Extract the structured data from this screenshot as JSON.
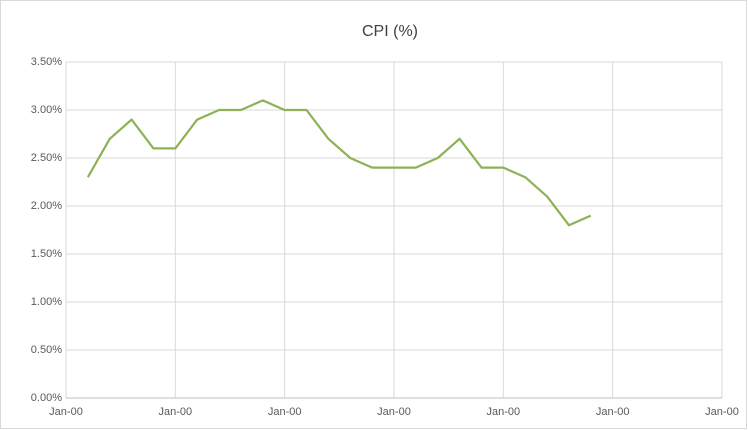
{
  "chart_data": {
    "type": "line",
    "title": "CPI (%)",
    "x": [
      1,
      2,
      3,
      4,
      5,
      6,
      7,
      8,
      9,
      10,
      11,
      12,
      13,
      14,
      15,
      16,
      17,
      18,
      19,
      20,
      21,
      22,
      23,
      24
    ],
    "values": [
      2.3,
      2.7,
      2.9,
      2.6,
      2.6,
      2.9,
      3.0,
      3.0,
      3.1,
      3.0,
      3.0,
      2.7,
      2.5,
      2.4,
      2.4,
      2.4,
      2.5,
      2.7,
      2.4,
      2.4,
      2.3,
      2.1,
      1.8,
      1.9
    ],
    "color": "#8db255",
    "xlim": [
      0,
      30
    ],
    "xticks": [
      {
        "value": 0,
        "label": "Jan-00"
      },
      {
        "value": 5,
        "label": "Jan-00"
      },
      {
        "value": 10,
        "label": "Jan-00"
      },
      {
        "value": 15,
        "label": "Jan-00"
      },
      {
        "value": 20,
        "label": "Jan-00"
      },
      {
        "value": 25,
        "label": "Jan-00"
      },
      {
        "value": 30,
        "label": "Jan-00"
      }
    ],
    "ylim": [
      0,
      3.5
    ],
    "yticks": [
      {
        "value": 0,
        "label": "0.00%"
      },
      {
        "value": 0.5,
        "label": "0.50%"
      },
      {
        "value": 1,
        "label": "1.00%"
      },
      {
        "value": 1.5,
        "label": "1.50%"
      },
      {
        "value": 2,
        "label": "2.00%"
      },
      {
        "value": 2.5,
        "label": "2.50%"
      },
      {
        "value": 3,
        "label": "3.00%"
      },
      {
        "value": 3.5,
        "label": "3.50%"
      }
    ],
    "grid": true
  }
}
